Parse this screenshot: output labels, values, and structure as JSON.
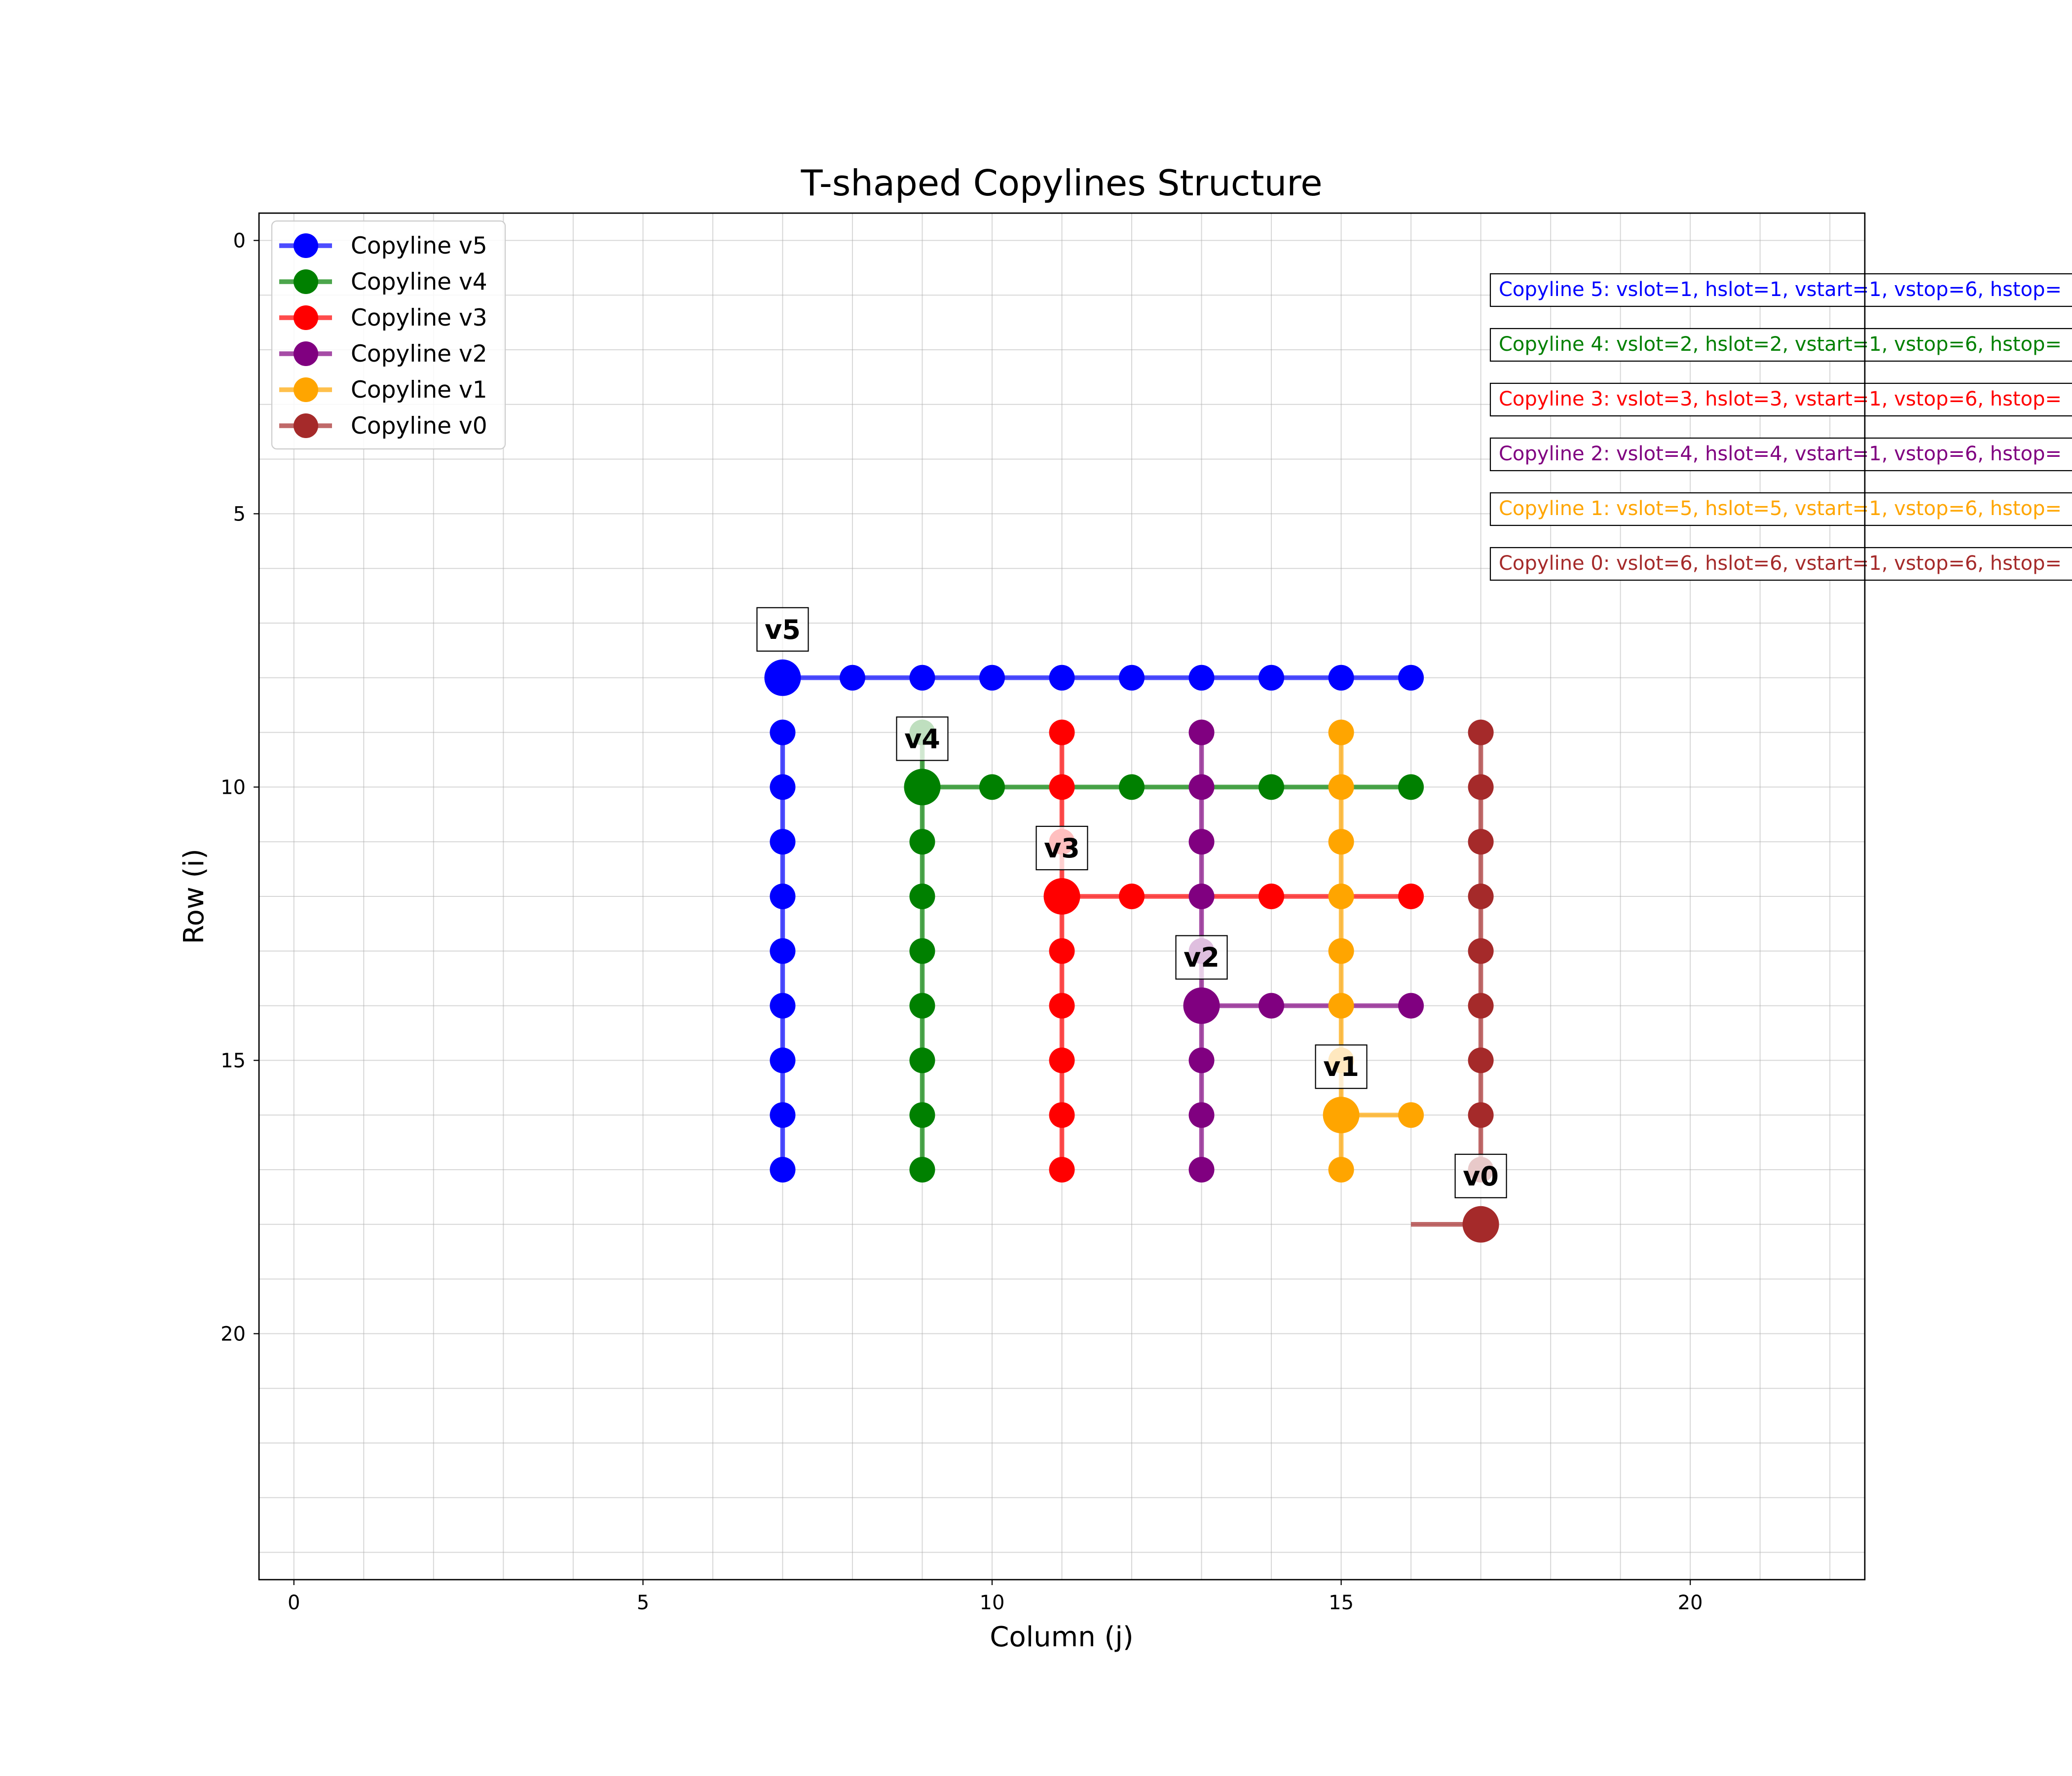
{
  "chart_data": {
    "type": "line",
    "title": "T-shaped Copylines Structure",
    "xlabel": "Column (j)",
    "ylabel": "Row (i)",
    "xlim": [
      -0.5,
      22.5
    ],
    "ylim": [
      24.5,
      -0.5
    ],
    "y_inverted": true,
    "xticks": [
      0,
      5,
      10,
      15,
      20
    ],
    "yticks": [
      0,
      5,
      10,
      15,
      20
    ],
    "grid": true,
    "legend_position": "top-left",
    "series": [
      {
        "name": "Copyline v5",
        "color": "#0000ff",
        "label": "v5",
        "corner": [
          7,
          8
        ],
        "vertical": [
          [
            7,
            9
          ],
          [
            7,
            10
          ],
          [
            7,
            11
          ],
          [
            7,
            12
          ],
          [
            7,
            13
          ],
          [
            7,
            14
          ],
          [
            7,
            15
          ],
          [
            7,
            16
          ],
          [
            7,
            17
          ]
        ],
        "horizontal": [
          [
            8,
            8
          ],
          [
            9,
            8
          ],
          [
            10,
            8
          ],
          [
            11,
            8
          ],
          [
            12,
            8
          ],
          [
            13,
            8
          ],
          [
            14,
            8
          ],
          [
            15,
            8
          ],
          [
            16,
            8
          ]
        ],
        "info": "Copyline 5: vslot=1, hslot=1, vstart=1, vstop=6, hstop="
      },
      {
        "name": "Copyline v4",
        "color": "#008000",
        "label": "v4",
        "corner": [
          9,
          10
        ],
        "vertical": [
          [
            9,
            9
          ],
          [
            9,
            11
          ],
          [
            9,
            12
          ],
          [
            9,
            13
          ],
          [
            9,
            14
          ],
          [
            9,
            15
          ],
          [
            9,
            16
          ],
          [
            9,
            17
          ]
        ],
        "horizontal": [
          [
            10,
            10
          ],
          [
            12,
            10
          ],
          [
            14,
            10
          ],
          [
            16,
            10
          ]
        ],
        "info": "Copyline 4: vslot=2, hslot=2, vstart=1, vstop=6, hstop="
      },
      {
        "name": "Copyline v3",
        "color": "#ff0000",
        "label": "v3",
        "corner": [
          11,
          12
        ],
        "vertical": [
          [
            11,
            9
          ],
          [
            11,
            10
          ],
          [
            11,
            11
          ],
          [
            11,
            13
          ],
          [
            11,
            14
          ],
          [
            11,
            15
          ],
          [
            11,
            16
          ],
          [
            11,
            17
          ]
        ],
        "horizontal": [
          [
            12,
            12
          ],
          [
            14,
            12
          ],
          [
            16,
            12
          ]
        ],
        "info": "Copyline 3: vslot=3, hslot=3, vstart=1, vstop=6, hstop="
      },
      {
        "name": "Copyline v2",
        "color": "#800080",
        "label": "v2",
        "corner": [
          13,
          14
        ],
        "vertical": [
          [
            13,
            9
          ],
          [
            13,
            10
          ],
          [
            13,
            11
          ],
          [
            13,
            12
          ],
          [
            13,
            13
          ],
          [
            13,
            15
          ],
          [
            13,
            16
          ],
          [
            13,
            17
          ]
        ],
        "horizontal": [
          [
            14,
            14
          ],
          [
            16,
            14
          ]
        ],
        "info": "Copyline 2: vslot=4, hslot=4, vstart=1, vstop=6, hstop="
      },
      {
        "name": "Copyline v1",
        "color": "#ffa500",
        "label": "v1",
        "corner": [
          15,
          16
        ],
        "vertical": [
          [
            15,
            9
          ],
          [
            15,
            10
          ],
          [
            15,
            11
          ],
          [
            15,
            12
          ],
          [
            15,
            13
          ],
          [
            15,
            14
          ],
          [
            15,
            15
          ],
          [
            15,
            17
          ]
        ],
        "horizontal": [
          [
            16,
            16
          ]
        ],
        "info": "Copyline 1: vslot=5, hslot=5, vstart=1, vstop=6, hstop="
      },
      {
        "name": "Copyline v0",
        "color": "#a52a2a",
        "label": "v0",
        "corner": [
          17,
          18
        ],
        "vertical": [
          [
            17,
            9
          ],
          [
            17,
            10
          ],
          [
            17,
            11
          ],
          [
            17,
            12
          ],
          [
            17,
            13
          ],
          [
            17,
            14
          ],
          [
            17,
            15
          ],
          [
            17,
            16
          ],
          [
            17,
            17
          ]
        ],
        "horizontal": [],
        "horizontal_line_to": 16,
        "info": "Copyline 0: vslot=6, hslot=6, vstart=1, vstop=6, hstop="
      }
    ]
  }
}
